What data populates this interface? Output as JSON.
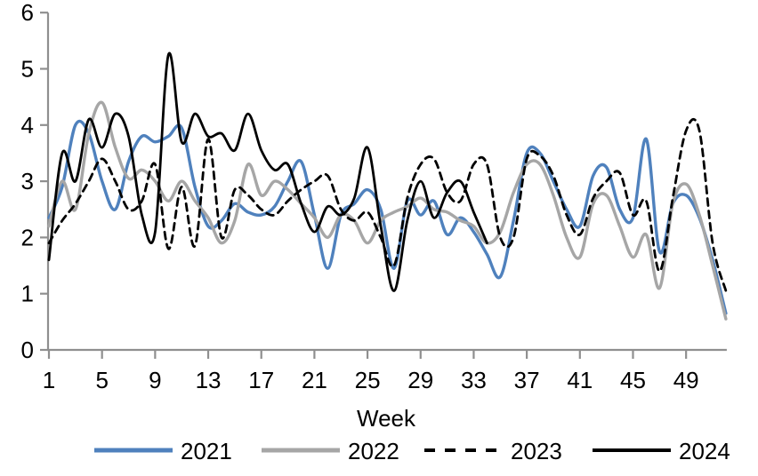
{
  "chart_data": {
    "type": "line",
    "title": "",
    "xlabel": "Week",
    "ylabel": "",
    "x_description": "Week of year, 1 through 52",
    "weeks": 52,
    "x_ticks": [
      1,
      5,
      9,
      13,
      17,
      21,
      25,
      29,
      33,
      37,
      41,
      45,
      49
    ],
    "ylim": [
      0,
      6
    ],
    "y_ticks": [
      0,
      1,
      2,
      3,
      4,
      5,
      6
    ],
    "grid": false,
    "legend_position": "bottom",
    "axis_color": "#8F8F8F",
    "text_color": "#000000",
    "series": [
      {
        "name": "2021",
        "color": "#4F81BD",
        "dash": "solid",
        "start_week": 1,
        "values": [
          2.35,
          2.9,
          4.0,
          3.85,
          3.0,
          2.5,
          3.35,
          3.8,
          3.7,
          3.8,
          3.95,
          2.9,
          2.2,
          2.3,
          2.6,
          2.45,
          2.4,
          2.55,
          3.0,
          3.35,
          2.4,
          1.45,
          2.4,
          2.6,
          2.85,
          2.5,
          1.45,
          2.65,
          2.4,
          2.65,
          2.05,
          2.35,
          2.1,
          1.7,
          1.3,
          2.3,
          3.5,
          3.5,
          3.0,
          2.5,
          2.2,
          3.1,
          3.25,
          2.5,
          2.35,
          3.75,
          1.75,
          2.6,
          2.75,
          2.35,
          1.6,
          0.65
        ]
      },
      {
        "name": "2022",
        "color": "#A6A6A6",
        "dash": "solid",
        "start_week": 1,
        "values": [
          2.2,
          3.0,
          2.5,
          3.85,
          4.4,
          3.6,
          3.05,
          3.2,
          3.0,
          2.65,
          3.0,
          2.65,
          2.35,
          1.9,
          2.3,
          3.3,
          2.75,
          3.0,
          2.85,
          2.6,
          2.35,
          2.0,
          2.4,
          2.3,
          1.9,
          2.3,
          2.45,
          2.55,
          2.7,
          2.5,
          2.45,
          2.3,
          2.2,
          1.9,
          2.1,
          2.8,
          3.3,
          3.3,
          2.75,
          2.0,
          1.65,
          2.6,
          2.75,
          2.2,
          1.65,
          2.05,
          1.1,
          2.6,
          2.95,
          2.4,
          1.5,
          0.55
        ]
      },
      {
        "name": "2023",
        "color": "#000000",
        "dash": "dashed",
        "start_week": 1,
        "values": [
          1.9,
          2.3,
          2.6,
          3.0,
          3.4,
          3.0,
          2.5,
          2.65,
          3.3,
          1.8,
          2.9,
          1.85,
          3.75,
          2.0,
          2.85,
          2.75,
          2.5,
          2.4,
          2.65,
          2.85,
          3.0,
          3.1,
          2.5,
          2.3,
          2.45,
          2.0,
          1.5,
          2.7,
          3.3,
          3.4,
          2.8,
          2.65,
          3.3,
          3.3,
          2.0,
          2.0,
          3.4,
          3.45,
          3.1,
          2.4,
          2.05,
          2.7,
          3.0,
          3.15,
          2.4,
          2.65,
          1.4,
          2.7,
          3.9,
          3.9,
          1.9,
          1.05
        ]
      },
      {
        "name": "2024",
        "color": "#000000",
        "dash": "solid",
        "start_week": 1,
        "values": [
          1.6,
          3.5,
          3.0,
          4.1,
          3.6,
          4.2,
          3.8,
          2.4,
          2.1,
          5.25,
          3.7,
          4.2,
          3.8,
          3.85,
          3.55,
          4.2,
          3.55,
          3.2,
          3.3,
          2.6,
          2.1,
          2.55,
          2.4,
          2.7,
          3.6,
          2.2,
          1.05,
          2.3,
          3.0,
          2.35,
          2.8,
          3.0,
          2.45,
          1.9
        ]
      }
    ]
  }
}
